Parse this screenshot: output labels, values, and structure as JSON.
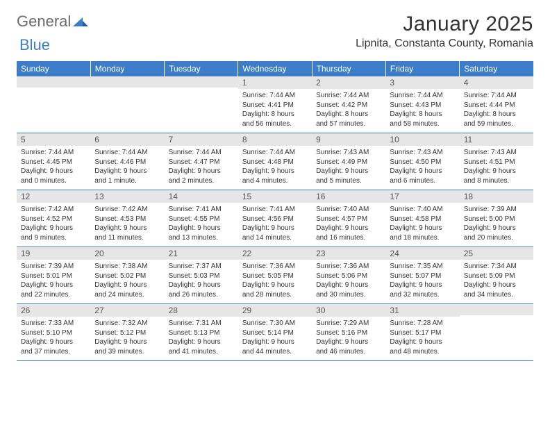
{
  "logo": {
    "text1": "General",
    "text2": "Blue"
  },
  "title": "January 2025",
  "location": "Lipnita, Constanta County, Romania",
  "colors": {
    "header_bg": "#3d7cc9",
    "header_fg": "#ffffff",
    "daynum_bg": "#e6e6e6",
    "border": "#3d7cc9",
    "text": "#333333"
  },
  "day_names": [
    "Sunday",
    "Monday",
    "Tuesday",
    "Wednesday",
    "Thursday",
    "Friday",
    "Saturday"
  ],
  "weeks": [
    [
      {
        "n": "",
        "sr": "",
        "ss": "",
        "dl": ""
      },
      {
        "n": "",
        "sr": "",
        "ss": "",
        "dl": ""
      },
      {
        "n": "",
        "sr": "",
        "ss": "",
        "dl": ""
      },
      {
        "n": "1",
        "sr": "Sunrise: 7:44 AM",
        "ss": "Sunset: 4:41 PM",
        "dl": "Daylight: 8 hours and 56 minutes."
      },
      {
        "n": "2",
        "sr": "Sunrise: 7:44 AM",
        "ss": "Sunset: 4:42 PM",
        "dl": "Daylight: 8 hours and 57 minutes."
      },
      {
        "n": "3",
        "sr": "Sunrise: 7:44 AM",
        "ss": "Sunset: 4:43 PM",
        "dl": "Daylight: 8 hours and 58 minutes."
      },
      {
        "n": "4",
        "sr": "Sunrise: 7:44 AM",
        "ss": "Sunset: 4:44 PM",
        "dl": "Daylight: 8 hours and 59 minutes."
      }
    ],
    [
      {
        "n": "5",
        "sr": "Sunrise: 7:44 AM",
        "ss": "Sunset: 4:45 PM",
        "dl": "Daylight: 9 hours and 0 minutes."
      },
      {
        "n": "6",
        "sr": "Sunrise: 7:44 AM",
        "ss": "Sunset: 4:46 PM",
        "dl": "Daylight: 9 hours and 1 minute."
      },
      {
        "n": "7",
        "sr": "Sunrise: 7:44 AM",
        "ss": "Sunset: 4:47 PM",
        "dl": "Daylight: 9 hours and 2 minutes."
      },
      {
        "n": "8",
        "sr": "Sunrise: 7:44 AM",
        "ss": "Sunset: 4:48 PM",
        "dl": "Daylight: 9 hours and 4 minutes."
      },
      {
        "n": "9",
        "sr": "Sunrise: 7:43 AM",
        "ss": "Sunset: 4:49 PM",
        "dl": "Daylight: 9 hours and 5 minutes."
      },
      {
        "n": "10",
        "sr": "Sunrise: 7:43 AM",
        "ss": "Sunset: 4:50 PM",
        "dl": "Daylight: 9 hours and 6 minutes."
      },
      {
        "n": "11",
        "sr": "Sunrise: 7:43 AM",
        "ss": "Sunset: 4:51 PM",
        "dl": "Daylight: 9 hours and 8 minutes."
      }
    ],
    [
      {
        "n": "12",
        "sr": "Sunrise: 7:42 AM",
        "ss": "Sunset: 4:52 PM",
        "dl": "Daylight: 9 hours and 9 minutes."
      },
      {
        "n": "13",
        "sr": "Sunrise: 7:42 AM",
        "ss": "Sunset: 4:53 PM",
        "dl": "Daylight: 9 hours and 11 minutes."
      },
      {
        "n": "14",
        "sr": "Sunrise: 7:41 AM",
        "ss": "Sunset: 4:55 PM",
        "dl": "Daylight: 9 hours and 13 minutes."
      },
      {
        "n": "15",
        "sr": "Sunrise: 7:41 AM",
        "ss": "Sunset: 4:56 PM",
        "dl": "Daylight: 9 hours and 14 minutes."
      },
      {
        "n": "16",
        "sr": "Sunrise: 7:40 AM",
        "ss": "Sunset: 4:57 PM",
        "dl": "Daylight: 9 hours and 16 minutes."
      },
      {
        "n": "17",
        "sr": "Sunrise: 7:40 AM",
        "ss": "Sunset: 4:58 PM",
        "dl": "Daylight: 9 hours and 18 minutes."
      },
      {
        "n": "18",
        "sr": "Sunrise: 7:39 AM",
        "ss": "Sunset: 5:00 PM",
        "dl": "Daylight: 9 hours and 20 minutes."
      }
    ],
    [
      {
        "n": "19",
        "sr": "Sunrise: 7:39 AM",
        "ss": "Sunset: 5:01 PM",
        "dl": "Daylight: 9 hours and 22 minutes."
      },
      {
        "n": "20",
        "sr": "Sunrise: 7:38 AM",
        "ss": "Sunset: 5:02 PM",
        "dl": "Daylight: 9 hours and 24 minutes."
      },
      {
        "n": "21",
        "sr": "Sunrise: 7:37 AM",
        "ss": "Sunset: 5:03 PM",
        "dl": "Daylight: 9 hours and 26 minutes."
      },
      {
        "n": "22",
        "sr": "Sunrise: 7:36 AM",
        "ss": "Sunset: 5:05 PM",
        "dl": "Daylight: 9 hours and 28 minutes."
      },
      {
        "n": "23",
        "sr": "Sunrise: 7:36 AM",
        "ss": "Sunset: 5:06 PM",
        "dl": "Daylight: 9 hours and 30 minutes."
      },
      {
        "n": "24",
        "sr": "Sunrise: 7:35 AM",
        "ss": "Sunset: 5:07 PM",
        "dl": "Daylight: 9 hours and 32 minutes."
      },
      {
        "n": "25",
        "sr": "Sunrise: 7:34 AM",
        "ss": "Sunset: 5:09 PM",
        "dl": "Daylight: 9 hours and 34 minutes."
      }
    ],
    [
      {
        "n": "26",
        "sr": "Sunrise: 7:33 AM",
        "ss": "Sunset: 5:10 PM",
        "dl": "Daylight: 9 hours and 37 minutes."
      },
      {
        "n": "27",
        "sr": "Sunrise: 7:32 AM",
        "ss": "Sunset: 5:12 PM",
        "dl": "Daylight: 9 hours and 39 minutes."
      },
      {
        "n": "28",
        "sr": "Sunrise: 7:31 AM",
        "ss": "Sunset: 5:13 PM",
        "dl": "Daylight: 9 hours and 41 minutes."
      },
      {
        "n": "29",
        "sr": "Sunrise: 7:30 AM",
        "ss": "Sunset: 5:14 PM",
        "dl": "Daylight: 9 hours and 44 minutes."
      },
      {
        "n": "30",
        "sr": "Sunrise: 7:29 AM",
        "ss": "Sunset: 5:16 PM",
        "dl": "Daylight: 9 hours and 46 minutes."
      },
      {
        "n": "31",
        "sr": "Sunrise: 7:28 AM",
        "ss": "Sunset: 5:17 PM",
        "dl": "Daylight: 9 hours and 48 minutes."
      },
      {
        "n": "",
        "sr": "",
        "ss": "",
        "dl": ""
      }
    ]
  ]
}
